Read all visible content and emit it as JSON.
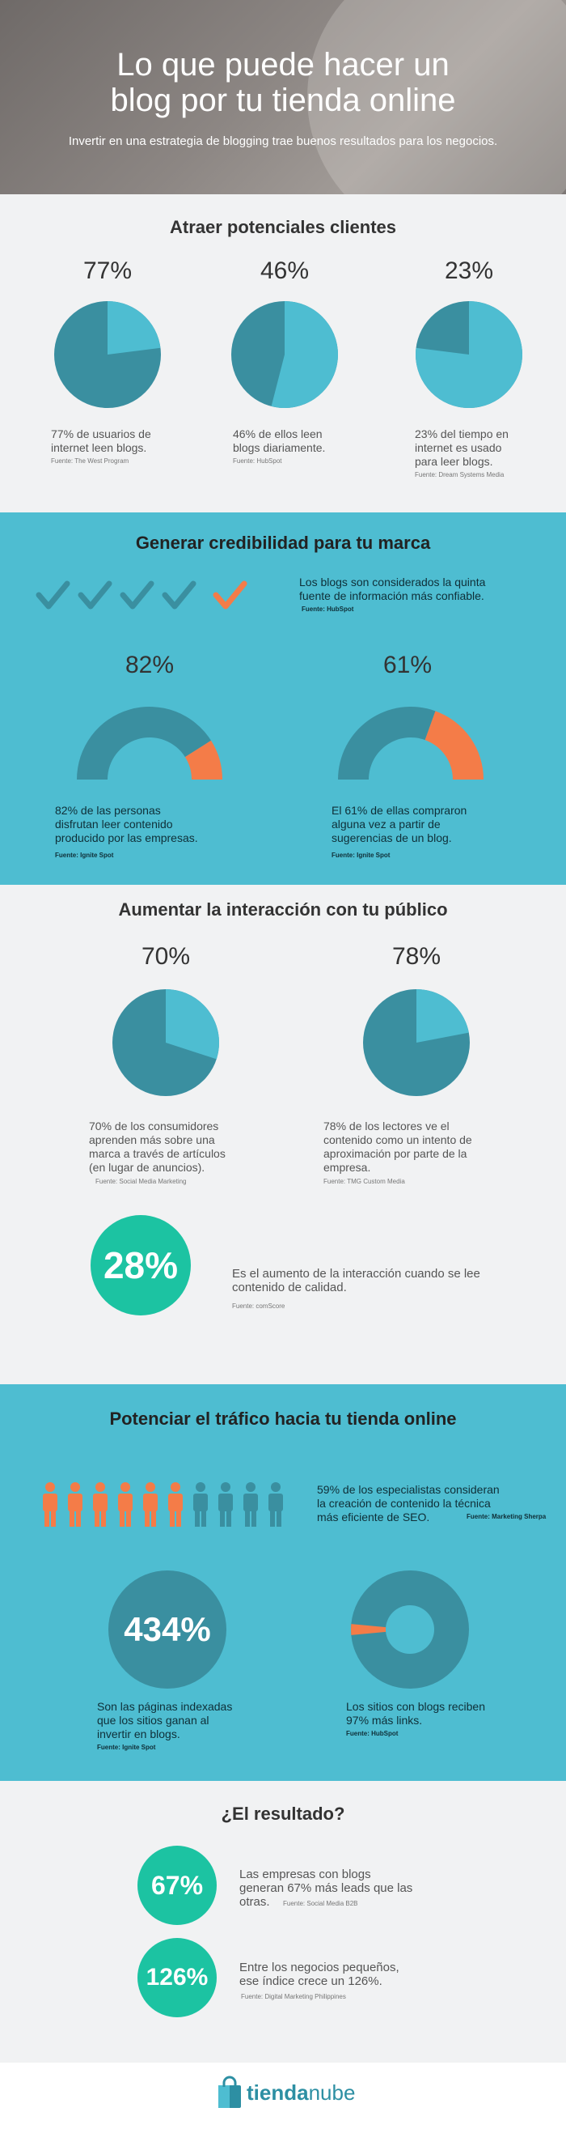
{
  "hero": {
    "title_line1": "Lo que puede hacer un",
    "title_line2": "blog por tu tienda online",
    "subtitle": "Invertir en una estrategia de blogging trae buenos resultados para los negocios."
  },
  "colors": {
    "teal_dark": "#3a8fa0",
    "teal_light": "#4ebdd1",
    "orange": "#f47c48",
    "green": "#1cc3a2"
  },
  "sections": {
    "s1_title": "Atraer potenciales clientes",
    "s2_title": "Generar credibilidad para tu marca",
    "s3_title": "Aumentar la interacción con tu público",
    "s4_title": "Potenciar el tráfico hacia tu tienda online",
    "s5_title": "¿El resultado?"
  },
  "s1": [
    {
      "pct": "77%",
      "l1": "77% de usuarios de",
      "l2": "internet leen blogs.",
      "l3": "",
      "source": "Fuente: The West Program"
    },
    {
      "pct": "46%",
      "l1": "46% de ellos leen",
      "l2": "blogs diariamente.",
      "l3": "",
      "source": "Fuente: HubSpot"
    },
    {
      "pct": "23%",
      "l1": "23% del  tiempo en",
      "l2": "internet es usado",
      "l3": "para leer blogs.",
      "source": "Fuente: Dream Systems Media"
    }
  ],
  "s2": {
    "checks_text_l1": "Los blogs son considerados la quinta",
    "checks_text_l2": "fuente de información más confiable.",
    "checks_source": "Fuente: HubSpot",
    "items": [
      {
        "pct": "82%",
        "l1": "82% de las  personas",
        "l2": "disfrutan leer contenido",
        "l3": "producido por las empresas.",
        "source": "Fuente: Ignite Spot"
      },
      {
        "pct": "61%",
        "l1": "El 61% de ellas compraron",
        "l2": "alguna vez a partir de",
        "l3": "sugerencias de un blog.",
        "source": "Fuente: Ignite Spot"
      }
    ]
  },
  "s3": {
    "items": [
      {
        "pct": "70%",
        "l1": "70% de los consumidores",
        "l2": "aprenden más sobre una",
        "l3": "marca a través de artículos",
        "l4": "(en lugar de anuncios).",
        "source": "Fuente: Social Media Marketing"
      },
      {
        "pct": "78%",
        "l1": "78%  de los  lectores ve el",
        "l2": "contenido como un intento de",
        "l3": "aproximación por parte de la",
        "l4": "empresa.",
        "source": "Fuente: TMG Custom Media"
      }
    ],
    "big_pct": "28%",
    "big_l1": "Es el aumento de la interacción cuando se lee",
    "big_l2": "contenido de calidad.",
    "big_source": "Fuente: comScore"
  },
  "s4": {
    "people_l1": "59% de los especialistas consideran",
    "people_l2": "la creación de contenido la técnica",
    "people_l3": "más eficiente de SEO.",
    "people_source": "Fuente: Marketing Sherpa",
    "big_pct": "434%",
    "left_l1": "Son las páginas indexadas",
    "left_l2": "que los sitios ganan al",
    "left_l3": "invertir en blogs.",
    "left_source": "Fuente: Ignite Spot",
    "right_l1": "Los sitios con blogs reciben",
    "right_l2": "97% más links.",
    "right_source": "Fuente: HubSpot"
  },
  "s5": {
    "items": [
      {
        "pct": "67%",
        "l1": "Las empresas con blogs",
        "l2": "generan 67% más leads que las",
        "l3": "otras.",
        "source": "Fuente: Social Media B2B"
      },
      {
        "pct": "126%",
        "l1": "Entre los negocios pequeños,",
        "l2": "ese índice crece un 126%.",
        "l3": "",
        "source": "Fuente: Digital Marketing Philippines"
      }
    ]
  },
  "logo": {
    "part1": "tienda",
    "part2": "nube"
  },
  "chart_data": [
    {
      "type": "pie",
      "title": "Atraer potenciales clientes",
      "series": [
        {
          "values": [
            77,
            46,
            23
          ]
        }
      ]
    },
    {
      "type": "pie",
      "title": "Generar credibilidad para tu marca",
      "series": [
        {
          "values": [
            82,
            61
          ]
        }
      ]
    },
    {
      "type": "pie",
      "title": "Aumentar la interacción con tu público",
      "series": [
        {
          "values": [
            70,
            78
          ]
        }
      ]
    },
    {
      "type": "pie",
      "title": "Potenciar el tráfico hacia tu tienda online",
      "series": [
        {
          "values": [
            59,
            97
          ]
        }
      ]
    }
  ]
}
